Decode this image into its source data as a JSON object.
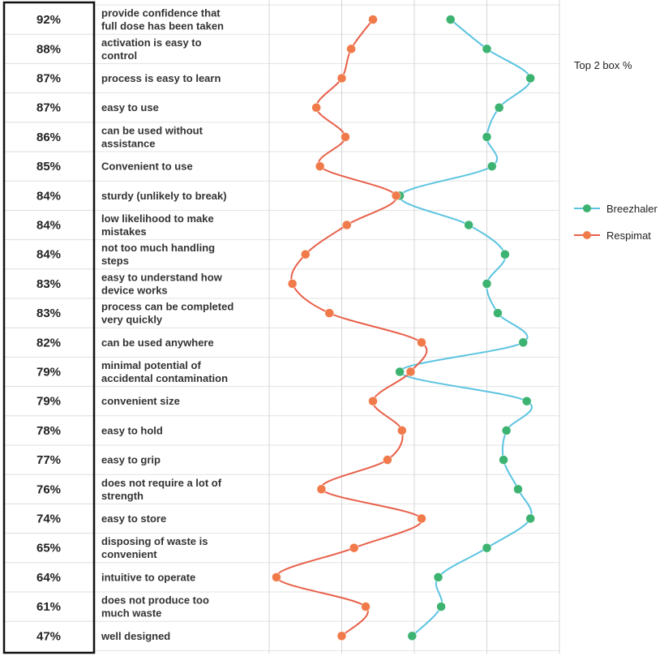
{
  "chart_data": {
    "type": "line",
    "side_title": "Top 2 box %",
    "categories": [
      {
        "pct": "92%",
        "label": [
          "provide confidence that",
          "full dose has been taken"
        ]
      },
      {
        "pct": "88%",
        "label": [
          "activation is easy to",
          "control"
        ]
      },
      {
        "pct": "87%",
        "label": [
          "process is easy to learn"
        ]
      },
      {
        "pct": "87%",
        "label": [
          "easy to use"
        ]
      },
      {
        "pct": "86%",
        "label": [
          "can be used without",
          "assistance"
        ]
      },
      {
        "pct": "85%",
        "label": [
          "Convenient to use"
        ]
      },
      {
        "pct": "84%",
        "label": [
          "sturdy (unlikely to break)"
        ]
      },
      {
        "pct": "84%",
        "label": [
          "low likelihood to make",
          "mistakes"
        ]
      },
      {
        "pct": "84%",
        "label": [
          "not too much handling",
          "steps"
        ]
      },
      {
        "pct": "83%",
        "label": [
          "easy to understand how",
          "device works"
        ]
      },
      {
        "pct": "83%",
        "label": [
          "process can be completed",
          "very quickly"
        ]
      },
      {
        "pct": "82%",
        "label": [
          "can be used anywhere"
        ]
      },
      {
        "pct": "79%",
        "label": [
          "minimal potential of",
          "accidental contamination"
        ]
      },
      {
        "pct": "79%",
        "label": [
          "convenient size"
        ]
      },
      {
        "pct": "78%",
        "label": [
          "easy to hold"
        ]
      },
      {
        "pct": "77%",
        "label": [
          "easy to grip"
        ]
      },
      {
        "pct": "76%",
        "label": [
          "does not require a lot of",
          "strength"
        ]
      },
      {
        "pct": "74%",
        "label": [
          "easy to store"
        ]
      },
      {
        "pct": "65%",
        "label": [
          "disposing of waste is",
          "convenient"
        ]
      },
      {
        "pct": "64%",
        "label": [
          "intuitive to operate"
        ]
      },
      {
        "pct": "61%",
        "label": [
          "does not produce too",
          "much waste"
        ]
      },
      {
        "pct": "47%",
        "label": [
          "well designed"
        ]
      }
    ],
    "x_range": [
      0,
      4
    ],
    "series": [
      {
        "name": "Breezhaler",
        "color": "#5bc4e0",
        "marker_color": "#3cb371",
        "values": [
          2.5,
          3.0,
          3.6,
          3.17,
          3.0,
          3.07,
          1.8,
          2.75,
          3.25,
          3.0,
          3.15,
          3.5,
          1.8,
          3.55,
          3.27,
          3.23,
          3.43,
          3.6,
          3.0,
          2.33,
          2.37,
          1.97
        ]
      },
      {
        "name": "Respimat",
        "color": "#e8604a",
        "marker_color": "#f07a4a",
        "values": [
          1.43,
          1.13,
          1.0,
          0.65,
          1.05,
          0.7,
          1.75,
          1.07,
          0.5,
          0.32,
          0.83,
          2.1,
          1.95,
          1.43,
          1.83,
          1.63,
          0.72,
          2.1,
          1.17,
          0.1,
          1.33,
          1.0
        ]
      }
    ],
    "grid": true,
    "legend_position": "right"
  }
}
